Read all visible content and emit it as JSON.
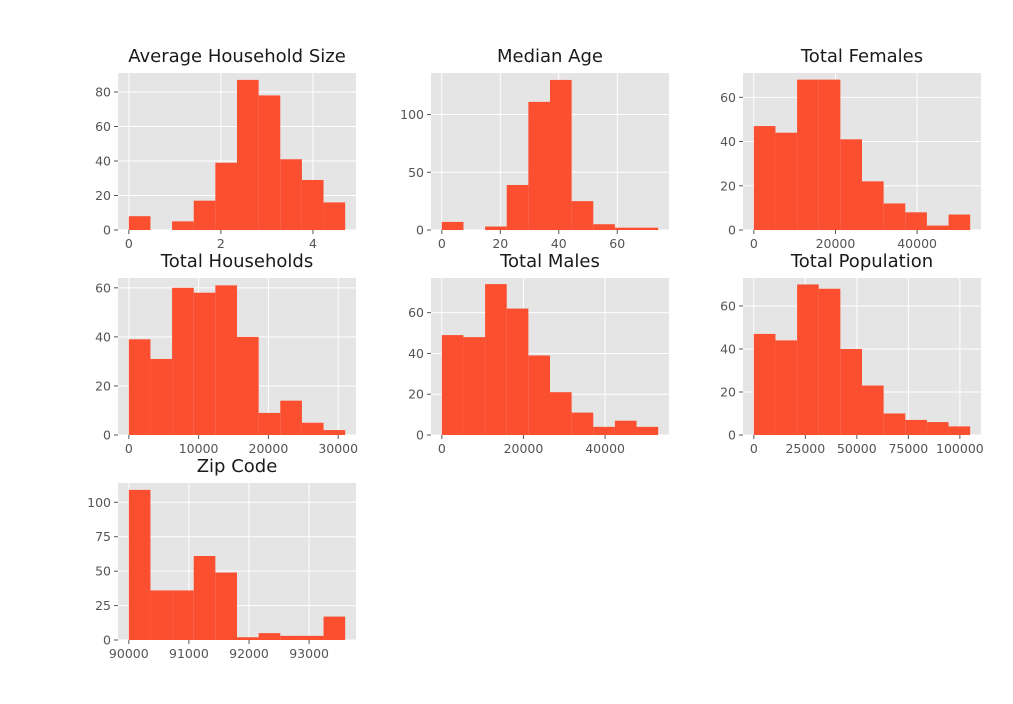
{
  "chart_data": [
    {
      "type": "bar",
      "title": "Average Household Size",
      "xlabel": "",
      "ylabel": "",
      "bin_edges": [
        0,
        0.47,
        0.94,
        1.41,
        1.88,
        2.35,
        2.82,
        3.29,
        3.76,
        4.23,
        4.7
      ],
      "values": [
        8,
        0,
        5,
        17,
        39,
        87,
        78,
        41,
        29,
        16
      ],
      "xlim": [
        -0.235,
        4.935
      ],
      "ylim": [
        0,
        91
      ],
      "xticks": [
        0,
        2,
        4
      ],
      "xtick_labels": [
        "0",
        "2",
        "4"
      ],
      "yticks": [
        0,
        20,
        40,
        60,
        80
      ],
      "ytick_labels": [
        "0",
        "20",
        "40",
        "60",
        "80"
      ],
      "grid": true
    },
    {
      "type": "bar",
      "title": "Median Age",
      "xlabel": "",
      "ylabel": "",
      "bin_edges": [
        0,
        7.4,
        14.8,
        22.2,
        29.6,
        37.0,
        44.4,
        51.8,
        59.2,
        66.6,
        74.0
      ],
      "values": [
        7,
        0,
        3,
        39,
        111,
        130,
        25,
        5,
        2,
        2
      ],
      "xlim": [
        -3.7,
        77.7
      ],
      "ylim": [
        0,
        136
      ],
      "xticks": [
        0,
        20,
        40,
        60
      ],
      "xtick_labels": [
        "0",
        "20",
        "40",
        "60"
      ],
      "yticks": [
        0,
        50,
        100
      ],
      "ytick_labels": [
        "0",
        "50",
        "100"
      ],
      "grid": true
    },
    {
      "type": "bar",
      "title": "Total Females",
      "xlabel": "",
      "ylabel": "",
      "bin_edges": [
        0,
        5300,
        10600,
        15900,
        21200,
        26500,
        31800,
        37100,
        42400,
        47700,
        53000
      ],
      "values": [
        47,
        44,
        68,
        68,
        41,
        22,
        12,
        8,
        2,
        7
      ],
      "xlim": [
        -2650,
        55650
      ],
      "ylim": [
        0,
        71
      ],
      "xticks": [
        0,
        20000,
        40000
      ],
      "xtick_labels": [
        "0",
        "20000",
        "40000"
      ],
      "yticks": [
        0,
        20,
        40,
        60
      ],
      "ytick_labels": [
        "0",
        "20",
        "40",
        "60"
      ],
      "grid": true
    },
    {
      "type": "bar",
      "title": "Total Households",
      "xlabel": "",
      "ylabel": "",
      "bin_edges": [
        0,
        3100,
        6200,
        9300,
        12400,
        15500,
        18600,
        21700,
        24800,
        27900,
        31000
      ],
      "values": [
        39,
        31,
        60,
        58,
        61,
        40,
        9,
        14,
        5,
        2
      ],
      "xlim": [
        -1550,
        32550
      ],
      "ylim": [
        0,
        64
      ],
      "xticks": [
        0,
        10000,
        20000,
        30000
      ],
      "xtick_labels": [
        "0",
        "10000",
        "20000",
        "30000"
      ],
      "yticks": [
        0,
        20,
        40,
        60
      ],
      "ytick_labels": [
        "0",
        "20",
        "40",
        "60"
      ],
      "grid": true
    },
    {
      "type": "bar",
      "title": "Total Males",
      "xlabel": "",
      "ylabel": "",
      "bin_edges": [
        0,
        5300,
        10600,
        15900,
        21200,
        26500,
        31800,
        37100,
        42400,
        47700,
        53000
      ],
      "values": [
        49,
        48,
        74,
        62,
        39,
        21,
        11,
        4,
        7,
        4
      ],
      "xlim": [
        -2650,
        55650
      ],
      "ylim": [
        0,
        77
      ],
      "xticks": [
        0,
        20000,
        40000
      ],
      "xtick_labels": [
        "0",
        "20000",
        "40000"
      ],
      "yticks": [
        0,
        20,
        40,
        60
      ],
      "ytick_labels": [
        "0",
        "20",
        "40",
        "60"
      ],
      "grid": true
    },
    {
      "type": "bar",
      "title": "Total Population",
      "xlabel": "",
      "ylabel": "",
      "bin_edges": [
        0,
        10500,
        21000,
        31500,
        42000,
        52500,
        63000,
        73500,
        84000,
        94500,
        105000
      ],
      "values": [
        47,
        44,
        70,
        68,
        40,
        23,
        10,
        7,
        6,
        4
      ],
      "xlim": [
        -5250,
        110250
      ],
      "ylim": [
        0,
        73
      ],
      "xticks": [
        0,
        25000,
        50000,
        75000,
        100000
      ],
      "xtick_labels": [
        "0",
        "25000",
        "50000",
        "75000",
        "100000"
      ],
      "yticks": [
        0,
        20,
        40,
        60
      ],
      "ytick_labels": [
        "0",
        "20",
        "40",
        "60"
      ],
      "grid": true
    },
    {
      "type": "bar",
      "title": "Zip Code",
      "xlabel": "",
      "ylabel": "",
      "bin_edges": [
        90000,
        90360,
        90720,
        91080,
        91440,
        91800,
        92160,
        92520,
        92880,
        93240,
        93600
      ],
      "values": [
        109,
        36,
        36,
        61,
        49,
        2,
        5,
        3,
        3,
        17
      ],
      "xlim": [
        89820,
        93780
      ],
      "ylim": [
        0,
        114
      ],
      "xticks": [
        90000,
        91000,
        92000,
        93000
      ],
      "xtick_labels": [
        "90000",
        "91000",
        "92000",
        "93000"
      ],
      "yticks": [
        0,
        25,
        50,
        75,
        100
      ],
      "ytick_labels": [
        "0",
        "25",
        "50",
        "75",
        "100"
      ],
      "grid": true
    }
  ],
  "colors": {
    "bar": "#fc4f30",
    "panel_background": "#e5e5e5",
    "grid": "#ffffff",
    "tick_text": "#555555",
    "title_text": "#1a1a1a"
  }
}
